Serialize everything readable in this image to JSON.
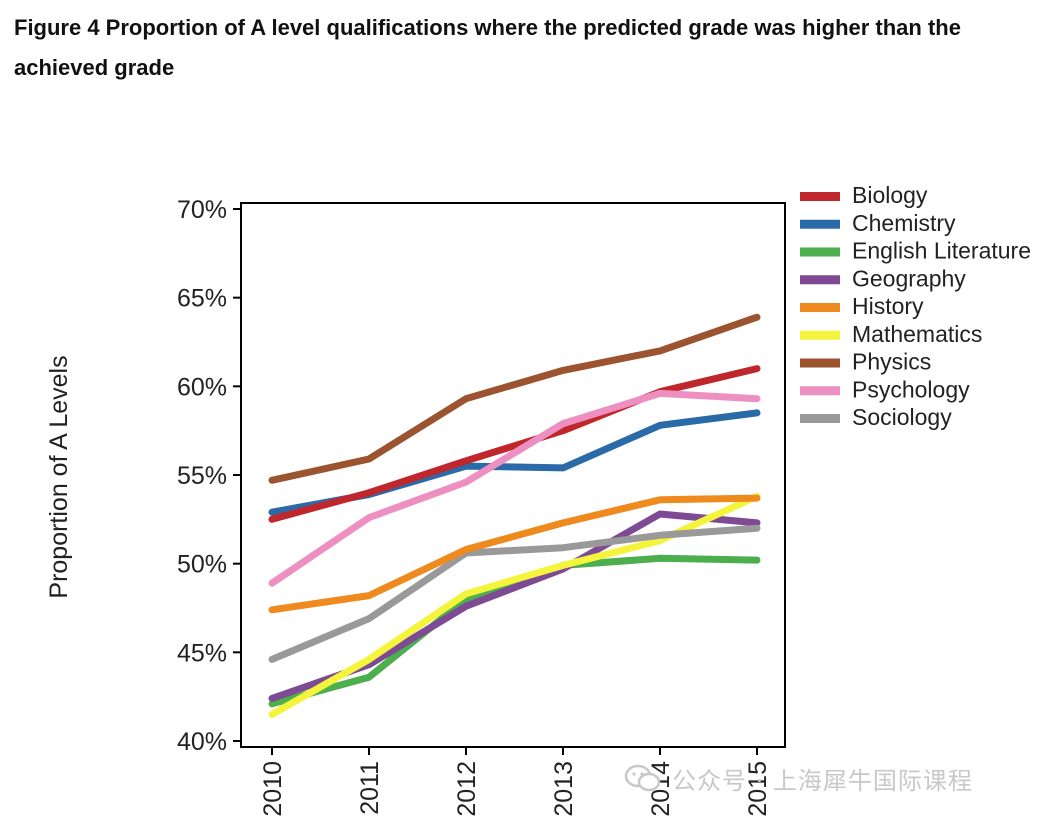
{
  "figure": {
    "title": "Figure 4 Proportion of A level qualifications where the predicted grade was higher than the achieved grade"
  },
  "chart_data": {
    "type": "line",
    "ylabel": "Proportion of A Levels",
    "xlabel": "",
    "x": [
      "2010",
      "2011",
      "2012",
      "2013",
      "2014",
      "2015"
    ],
    "ylim": [
      40,
      70
    ],
    "yticks": [
      "40%",
      "45%",
      "50%",
      "55%",
      "60%",
      "65%",
      "70%"
    ],
    "legend_position": "right",
    "series": [
      {
        "name": "Biology",
        "color": "#c0272d",
        "values": [
          52.5,
          54,
          55.8,
          57.5,
          59.7,
          61
        ]
      },
      {
        "name": "Chemistry",
        "color": "#2b6aa8",
        "values": [
          52.9,
          53.9,
          55.5,
          55.4,
          57.8,
          58.5
        ]
      },
      {
        "name": "English Literature",
        "color": "#4cae4c",
        "values": [
          42.1,
          43.6,
          48,
          49.9,
          50.3,
          50.2
        ]
      },
      {
        "name": "Geography",
        "color": "#7e4a94",
        "values": [
          42.4,
          44.3,
          47.6,
          49.7,
          52.8,
          52.3
        ]
      },
      {
        "name": "History",
        "color": "#ee8a1e",
        "values": [
          47.4,
          48.2,
          50.8,
          52.3,
          53.6,
          53.7
        ]
      },
      {
        "name": "Mathematics",
        "color": "#f4f43c",
        "values": [
          41.5,
          44.6,
          48.3,
          49.9,
          51.3,
          53.8
        ]
      },
      {
        "name": "Physics",
        "color": "#9c5330",
        "values": [
          54.7,
          55.9,
          59.3,
          60.9,
          62,
          63.9
        ]
      },
      {
        "name": "Psychology",
        "color": "#ee8fc2",
        "values": [
          48.9,
          52.6,
          54.6,
          57.9,
          59.6,
          59.3
        ]
      },
      {
        "name": "Sociology",
        "color": "#999999",
        "values": [
          44.6,
          46.9,
          50.6,
          50.9,
          51.6,
          52
        ]
      }
    ]
  },
  "watermark": {
    "text": "公众号 · 上海犀牛国际课程"
  }
}
